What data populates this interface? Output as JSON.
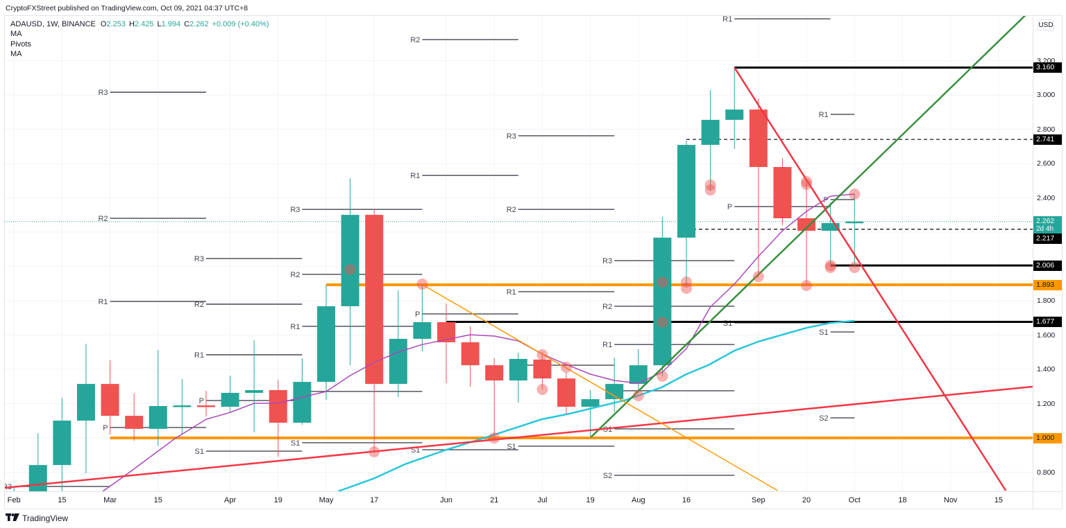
{
  "header": {
    "publisher_line": "CryptoFXStreet published on TradingView.com, Oct 09, 2021 04:37 UTC+8"
  },
  "legend": {
    "symbol": "ADAUSD, 1W, BINANCE",
    "open_label": "O",
    "open": "2.253",
    "high_label": "H",
    "high": "2.425",
    "low_label": "L",
    "low": "1.994",
    "close_label": "C",
    "close": "2.262",
    "change": "+0.009 (+0.40%)",
    "studies": [
      "MA",
      "Pivots",
      "MA"
    ]
  },
  "price_axis": {
    "currency_button": "USD"
  },
  "footer": {
    "brand": "TradingView",
    "logo_icon": "tradingview-logo-icon"
  },
  "colors": {
    "up": "#26a69a",
    "down": "#ef5350",
    "grid": "#f0f3fa",
    "pivot": "#434651",
    "pivot_label": "#434651",
    "marker": "rgba(239,83,80,0.45)",
    "border": "#e0e3eb"
  },
  "chart_data": {
    "type": "candlestick",
    "title": "ADAUSD, 1W, BINANCE",
    "xlabel": "",
    "ylabel": "USD",
    "ylim": [
      0.689,
      3.465
    ],
    "x_range_weeks": [
      -0.38,
      42.42
    ],
    "grid": true,
    "y_ticks": [
      {
        "value": 3.2,
        "label": "3.200"
      },
      {
        "value": 3.0,
        "label": "3.000"
      },
      {
        "value": 2.8,
        "label": "2.800"
      },
      {
        "value": 2.6,
        "label": "2.600"
      },
      {
        "value": 2.4,
        "label": "2.400"
      },
      {
        "value": 2.2,
        "label": "2.200"
      },
      {
        "value": 2.0,
        "label": "2.000"
      },
      {
        "value": 1.8,
        "label": "1.800"
      },
      {
        "value": 1.6,
        "label": "1.600"
      },
      {
        "value": 1.4,
        "label": "1.400"
      },
      {
        "value": 1.2,
        "label": "1.200"
      },
      {
        "value": 1.0,
        "label": "1.000"
      },
      {
        "value": 0.8,
        "label": "0.800"
      }
    ],
    "x_ticks": [
      {
        "week": 0,
        "label": "Feb"
      },
      {
        "week": 2,
        "label": "15"
      },
      {
        "week": 4,
        "label": "Mar"
      },
      {
        "week": 6,
        "label": "15"
      },
      {
        "week": 9,
        "label": "Apr"
      },
      {
        "week": 11,
        "label": "19"
      },
      {
        "week": 13,
        "label": "May"
      },
      {
        "week": 15,
        "label": "17"
      },
      {
        "week": 18,
        "label": "Jun"
      },
      {
        "week": 20,
        "label": "21"
      },
      {
        "week": 22,
        "label": "Jul"
      },
      {
        "week": 24,
        "label": "19"
      },
      {
        "week": 26,
        "label": "Aug"
      },
      {
        "week": 28,
        "label": "16"
      },
      {
        "week": 31,
        "label": "Sep"
      },
      {
        "week": 33,
        "label": "20"
      },
      {
        "week": 35,
        "label": "Oct"
      },
      {
        "week": 37,
        "label": "18"
      },
      {
        "week": 39,
        "label": "Nov"
      },
      {
        "week": 41,
        "label": "15"
      }
    ],
    "candles": [
      {
        "date": "2021-02-01",
        "o": 0.39,
        "h": 0.717,
        "l": 0.37,
        "c": 0.68
      },
      {
        "date": "2021-02-08",
        "o": 0.68,
        "h": 1.028,
        "l": 0.66,
        "c": 0.842
      },
      {
        "date": "2021-02-15",
        "o": 0.842,
        "h": 1.234,
        "l": 0.68,
        "c": 1.101
      },
      {
        "date": "2021-02-22",
        "o": 1.101,
        "h": 1.549,
        "l": 0.794,
        "c": 1.315
      },
      {
        "date": "2021-03-01",
        "o": 1.315,
        "h": 1.453,
        "l": 1.02,
        "c": 1.129
      },
      {
        "date": "2021-03-08",
        "o": 1.129,
        "h": 1.259,
        "l": 0.984,
        "c": 1.053
      },
      {
        "date": "2021-03-15",
        "o": 1.053,
        "h": 1.513,
        "l": 0.952,
        "c": 1.186
      },
      {
        "date": "2021-03-22",
        "o": 1.184,
        "h": 1.343,
        "l": 1.02,
        "c": 1.19
      },
      {
        "date": "2021-03-29",
        "o": 1.19,
        "h": 1.275,
        "l": 1.125,
        "c": 1.182
      },
      {
        "date": "2021-04-05",
        "o": 1.182,
        "h": 1.364,
        "l": 1.15,
        "c": 1.263
      },
      {
        "date": "2021-04-12",
        "o": 1.263,
        "h": 1.57,
        "l": 1.032,
        "c": 1.279
      },
      {
        "date": "2021-04-19",
        "o": 1.279,
        "h": 1.339,
        "l": 0.891,
        "c": 1.089
      },
      {
        "date": "2021-04-26",
        "o": 1.089,
        "h": 1.465,
        "l": 1.077,
        "c": 1.327
      },
      {
        "date": "2021-05-03",
        "o": 1.327,
        "h": 1.893,
        "l": 1.222,
        "c": 1.768
      },
      {
        "date": "2021-05-10",
        "o": 1.768,
        "h": 2.515,
        "l": 1.424,
        "c": 2.301
      },
      {
        "date": "2021-05-17",
        "o": 2.301,
        "h": 2.333,
        "l": 0.915,
        "c": 1.315
      },
      {
        "date": "2021-05-24",
        "o": 1.315,
        "h": 1.861,
        "l": 1.238,
        "c": 1.578
      },
      {
        "date": "2021-05-31",
        "o": 1.578,
        "h": 1.893,
        "l": 1.505,
        "c": 1.675
      },
      {
        "date": "2021-06-07",
        "o": 1.675,
        "h": 1.784,
        "l": 1.319,
        "c": 1.558
      },
      {
        "date": "2021-06-14",
        "o": 1.558,
        "h": 1.651,
        "l": 1.299,
        "c": 1.424
      },
      {
        "date": "2021-06-21",
        "o": 1.424,
        "h": 1.465,
        "l": 0.996,
        "c": 1.335
      },
      {
        "date": "2021-06-28",
        "o": 1.335,
        "h": 1.497,
        "l": 1.206,
        "c": 1.461
      },
      {
        "date": "2021-07-05",
        "o": 1.457,
        "h": 1.501,
        "l": 1.283,
        "c": 1.347
      },
      {
        "date": "2021-07-12",
        "o": 1.347,
        "h": 1.38,
        "l": 1.141,
        "c": 1.182
      },
      {
        "date": "2021-07-19",
        "o": 1.182,
        "h": 1.279,
        "l": 1.008,
        "c": 1.226
      },
      {
        "date": "2021-07-26",
        "o": 1.226,
        "h": 1.469,
        "l": 1.15,
        "c": 1.315
      },
      {
        "date": "2021-08-02",
        "o": 1.315,
        "h": 1.517,
        "l": 1.263,
        "c": 1.424
      },
      {
        "date": "2021-08-09",
        "o": 1.424,
        "h": 2.289,
        "l": 1.36,
        "c": 2.168
      },
      {
        "date": "2021-08-16",
        "o": 2.168,
        "h": 2.733,
        "l": 1.889,
        "c": 2.709
      },
      {
        "date": "2021-08-23",
        "o": 2.709,
        "h": 3.028,
        "l": 2.442,
        "c": 2.855
      },
      {
        "date": "2021-08-30",
        "o": 2.855,
        "h": 3.16,
        "l": 2.685,
        "c": 2.915
      },
      {
        "date": "2021-09-06",
        "o": 2.915,
        "h": 2.98,
        "l": 1.937,
        "c": 2.58
      },
      {
        "date": "2021-09-13",
        "o": 2.58,
        "h": 2.632,
        "l": 2.24,
        "c": 2.281
      },
      {
        "date": "2021-09-20",
        "o": 2.281,
        "h": 2.511,
        "l": 1.889,
        "c": 2.208
      },
      {
        "date": "2021-09-27",
        "o": 2.208,
        "h": 2.374,
        "l": 2.006,
        "c": 2.253
      },
      {
        "date": "2021-10-04",
        "o": 2.253,
        "h": 2.425,
        "l": 1.994,
        "c": 2.262
      }
    ],
    "moving_averages": [
      {
        "name": "MA",
        "color": "#ab47bc",
        "width": 1.5,
        "points": [
          [
            3.7,
            0.689
          ],
          [
            4.6,
            0.778
          ],
          [
            6.7,
            0.996
          ],
          [
            8,
            1.109
          ],
          [
            9,
            1.149
          ],
          [
            10,
            1.202
          ],
          [
            11,
            1.202
          ],
          [
            12,
            1.238
          ],
          [
            13,
            1.271
          ],
          [
            14,
            1.364
          ],
          [
            15,
            1.44
          ],
          [
            16,
            1.501
          ],
          [
            17,
            1.545
          ],
          [
            18,
            1.574
          ],
          [
            19,
            1.602
          ],
          [
            20,
            1.594
          ],
          [
            21,
            1.566
          ],
          [
            22,
            1.489
          ],
          [
            23,
            1.428
          ],
          [
            24,
            1.372
          ],
          [
            25,
            1.335
          ],
          [
            26,
            1.319
          ],
          [
            27,
            1.384
          ],
          [
            28,
            1.521
          ],
          [
            29,
            1.764
          ],
          [
            30,
            1.897
          ],
          [
            31,
            2.059
          ],
          [
            32,
            2.208
          ],
          [
            33,
            2.321
          ],
          [
            34,
            2.41
          ],
          [
            35,
            2.422
          ]
        ]
      },
      {
        "name": "MA",
        "color": "#26c6da",
        "width": 2.5,
        "points": [
          [
            13.5,
            0.689
          ],
          [
            15.03,
            0.766
          ],
          [
            16.27,
            0.846
          ],
          [
            17.92,
            0.927
          ],
          [
            20.03,
            1.02
          ],
          [
            21.97,
            1.109
          ],
          [
            23.12,
            1.141
          ],
          [
            25.5,
            1.222
          ],
          [
            26.97,
            1.295
          ],
          [
            28,
            1.372
          ],
          [
            28.9,
            1.424
          ],
          [
            30,
            1.509
          ],
          [
            31,
            1.562
          ],
          [
            32,
            1.602
          ],
          [
            33,
            1.642
          ],
          [
            34,
            1.671
          ],
          [
            35,
            1.683
          ]
        ]
      }
    ],
    "pivots": [
      {
        "period": "Feb",
        "from": 0,
        "to": 4,
        "levels": [
          {
            "label": "R3",
            "value": 0.717
          }
        ]
      },
      {
        "period": "Mar",
        "from": 4,
        "to": 8,
        "levels": [
          {
            "label": "R3",
            "value": 3.016
          },
          {
            "label": "R2",
            "value": 2.281
          },
          {
            "label": "R1",
            "value": 1.796
          },
          {
            "label": "P",
            "value": 1.061
          }
        ]
      },
      {
        "period": "Apr",
        "from": 8,
        "to": 12,
        "levels": [
          {
            "label": "R3",
            "value": 2.046
          },
          {
            "label": "R2",
            "value": 1.78
          },
          {
            "label": "R1",
            "value": 1.485
          },
          {
            "label": "P",
            "value": 1.218
          },
          {
            "label": "S1",
            "value": 0.923
          }
        ]
      },
      {
        "period": "May",
        "from": 12,
        "to": 17,
        "levels": [
          {
            "label": "R3",
            "value": 2.333
          },
          {
            "label": "R2",
            "value": 1.954
          },
          {
            "label": "R1",
            "value": 1.651
          },
          {
            "label": "P",
            "value": 1.271
          },
          {
            "label": "S1",
            "value": 0.972
          }
        ]
      },
      {
        "period": "Jun",
        "from": 17,
        "to": 21,
        "levels": [
          {
            "label": "R2",
            "value": 3.323
          },
          {
            "label": "R1",
            "value": 2.531
          },
          {
            "label": "P",
            "value": 1.723
          },
          {
            "label": "S1",
            "value": 0.931
          }
        ]
      },
      {
        "period": "Jul",
        "from": 21,
        "to": 25,
        "levels": [
          {
            "label": "R3",
            "value": 2.762
          },
          {
            "label": "R2",
            "value": 2.333
          },
          {
            "label": "R1",
            "value": 1.853
          },
          {
            "label": "P",
            "value": 1.424
          },
          {
            "label": "S1",
            "value": 0.952
          }
        ]
      },
      {
        "period": "Aug",
        "from": 25,
        "to": 30,
        "levels": [
          {
            "label": "R3",
            "value": 2.034
          },
          {
            "label": "R2",
            "value": 1.768
          },
          {
            "label": "R1",
            "value": 1.545
          },
          {
            "label": "P",
            "value": 1.275
          },
          {
            "label": "S1",
            "value": 1.053
          },
          {
            "label": "S2",
            "value": 0.782
          }
        ]
      },
      {
        "period": "Sep",
        "from": 30,
        "to": 34,
        "levels": [
          {
            "label": "R1",
            "value": 3.444
          },
          {
            "label": "P",
            "value": 2.349
          },
          {
            "label": "S1",
            "value": 1.671
          }
        ]
      },
      {
        "period": "Oct",
        "from": 34,
        "to": 35,
        "levels": [
          {
            "label": "R1",
            "value": 2.887
          },
          {
            "label": "P",
            "value": 2.39
          },
          {
            "label": "S1",
            "value": 1.618
          },
          {
            "label": "S2",
            "value": 1.117
          }
        ]
      }
    ],
    "horizontal_levels": [
      {
        "value": 3.16,
        "from": 30,
        "color": "#000000",
        "width": 3,
        "dashed": false
      },
      {
        "value": 2.741,
        "from": 28,
        "color": "#000000",
        "width": 1.2,
        "dashed": true
      },
      {
        "value": 2.217,
        "from": 28,
        "color": "#000000",
        "width": 1.2,
        "dashed": true
      },
      {
        "value": 2.006,
        "from": 34,
        "color": "#000000",
        "width": 3,
        "dashed": false
      },
      {
        "value": 1.893,
        "from": 13,
        "color": "#ff9800",
        "width": 4,
        "dashed": false
      },
      {
        "value": 1.677,
        "from": 18,
        "color": "#000000",
        "width": 3,
        "dashed": false
      },
      {
        "value": 1.0,
        "from": 4,
        "color": "#ff9800",
        "width": 4,
        "dashed": false
      }
    ],
    "trend_lines": [
      {
        "name": "green-uptrend",
        "color": "#388e3c",
        "width": 2.5,
        "from": [
          24.02,
          1.004
        ],
        "to": [
          42.3,
          3.49
        ]
      },
      {
        "name": "red-downtrend",
        "color": "#f23645",
        "width": 2.5,
        "from": [
          30,
          3.16
        ],
        "to": [
          41.3,
          0.693
        ]
      },
      {
        "name": "red-rising-support",
        "color": "#f23645",
        "width": 2.5,
        "from": [
          -0.38,
          0.709
        ],
        "to": [
          42.42,
          1.299
        ]
      },
      {
        "name": "orange-downtrend",
        "color": "#ff9800",
        "width": 1.5,
        "from": [
          17.02,
          1.893
        ],
        "to": [
          31.8,
          0.693
        ]
      }
    ],
    "markers": [
      [
        14,
        1.982
      ],
      [
        15,
        1.897
      ],
      [
        17,
        1.897
      ],
      [
        15,
        0.919
      ],
      [
        20,
        1.0
      ],
      [
        22,
        1.485
      ],
      [
        22,
        1.388
      ],
      [
        22,
        1.283
      ],
      [
        23,
        1.412
      ],
      [
        26,
        1.246
      ],
      [
        27,
        1.909
      ],
      [
        27,
        1.675
      ],
      [
        27,
        1.36
      ],
      [
        28,
        1.909
      ],
      [
        28,
        1.873
      ],
      [
        29,
        2.475
      ],
      [
        29,
        2.446
      ],
      [
        31,
        2.826
      ],
      [
        31,
        1.941
      ],
      [
        33,
        2.495
      ],
      [
        33,
        2.479
      ],
      [
        33,
        1.889
      ],
      [
        34,
        2.006
      ],
      [
        34,
        1.994
      ],
      [
        35,
        2.422
      ],
      [
        35,
        1.994
      ]
    ],
    "price_tags": [
      {
        "value": 3.16,
        "label": "3.160",
        "bg": "#000000",
        "fg": "#ffffff"
      },
      {
        "value": 2.741,
        "label": "2.741",
        "bg": "#000000",
        "fg": "#ffffff"
      },
      {
        "value": 2.217,
        "label": "2.217",
        "bg": "#000000",
        "fg": "#ffffff"
      },
      {
        "value": 2.006,
        "label": "2.006",
        "bg": "#000000",
        "fg": "#ffffff"
      },
      {
        "value": 1.893,
        "label": "1.893",
        "bg": "#ff9800",
        "fg": "#131722"
      },
      {
        "value": 1.677,
        "label": "1.677",
        "bg": "#000000",
        "fg": "#ffffff"
      },
      {
        "value": 1.0,
        "label": "1.000",
        "bg": "#ff9800",
        "fg": "#131722"
      }
    ],
    "last_price": {
      "value": 2.262,
      "label": "2.262",
      "countdown": "2d 4h",
      "color": "#26a69a"
    }
  }
}
